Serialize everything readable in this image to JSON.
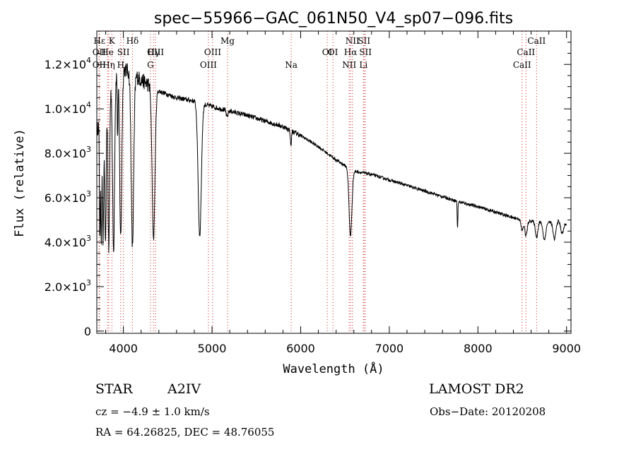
{
  "chart_data": {
    "type": "line",
    "title": "spec−55966−GAC_061N50_V4_sp07−096.fits",
    "xlabel": "Wavelength (Å)",
    "ylabel": "Flux (relative)",
    "xlim": [
      3700,
      9050
    ],
    "ylim": [
      -100,
      13500
    ],
    "x_ticks": [
      4000,
      5000,
      6000,
      7000,
      8000,
      9000
    ],
    "y_ticks": [
      {
        "value": 0,
        "mantissa": "0",
        "exp": ""
      },
      {
        "value": 2000,
        "mantissa": "2.0×10",
        "exp": "3"
      },
      {
        "value": 4000,
        "mantissa": "4.0×10",
        "exp": "3"
      },
      {
        "value": 6000,
        "mantissa": "6.0×10",
        "exp": "3"
      },
      {
        "value": 8000,
        "mantissa": "8.0×10",
        "exp": "3"
      },
      {
        "value": 10000,
        "mantissa": "1.0×10",
        "exp": "4"
      },
      {
        "value": 12000,
        "mantissa": "1.2×10",
        "exp": "4"
      }
    ],
    "grid": false,
    "line_color": "#000000",
    "marker_color": "#cc2222",
    "continuum": [
      [
        3700,
        9000
      ],
      [
        3800,
        10500
      ],
      [
        3900,
        11500
      ],
      [
        4000,
        11800
      ],
      [
        4100,
        11600
      ],
      [
        4200,
        11300
      ],
      [
        4400,
        10800
      ],
      [
        4600,
        10500
      ],
      [
        4800,
        10350
      ],
      [
        5000,
        10100
      ],
      [
        5200,
        9900
      ],
      [
        5400,
        9700
      ],
      [
        5600,
        9450
      ],
      [
        5800,
        9200
      ],
      [
        6000,
        8800
      ],
      [
        6200,
        8300
      ],
      [
        6400,
        7700
      ],
      [
        6600,
        7200
      ],
      [
        6800,
        7050
      ],
      [
        7000,
        6800
      ],
      [
        7200,
        6550
      ],
      [
        7400,
        6300
      ],
      [
        7600,
        6050
      ],
      [
        7800,
        5800
      ],
      [
        8000,
        5600
      ],
      [
        8200,
        5350
      ],
      [
        8400,
        5100
      ],
      [
        8600,
        4950
      ],
      [
        8800,
        4900
      ],
      [
        8950,
        5000
      ],
      [
        9000,
        4800
      ]
    ],
    "absorption": [
      {
        "x": 3734,
        "depth": 5000,
        "width": 5
      },
      {
        "x": 3750,
        "depth": 5500,
        "width": 6
      },
      {
        "x": 3771,
        "depth": 6200,
        "width": 7
      },
      {
        "x": 3798,
        "depth": 6800,
        "width": 8
      },
      {
        "x": 3835,
        "depth": 7200,
        "width": 9
      },
      {
        "x": 3889,
        "depth": 7800,
        "width": 11
      },
      {
        "x": 3934,
        "depth": 3000,
        "width": 4
      },
      {
        "x": 3970,
        "depth": 7500,
        "width": 12
      },
      {
        "x": 4102,
        "depth": 7800,
        "width": 14
      },
      {
        "x": 4340,
        "depth": 6800,
        "width": 16
      },
      {
        "x": 4861,
        "depth": 6000,
        "width": 18
      },
      {
        "x": 5170,
        "depth": 300,
        "width": 10
      },
      {
        "x": 5890,
        "depth": 700,
        "width": 6
      },
      {
        "x": 6562,
        "depth": 3000,
        "width": 16
      },
      {
        "x": 7770,
        "depth": 1200,
        "width": 4
      },
      {
        "x": 8498,
        "depth": 500,
        "width": 12
      },
      {
        "x": 8542,
        "depth": 700,
        "width": 14
      },
      {
        "x": 8662,
        "depth": 700,
        "width": 14
      },
      {
        "x": 8750,
        "depth": 800,
        "width": 16
      },
      {
        "x": 8863,
        "depth": 800,
        "width": 16
      },
      {
        "x": 8950,
        "depth": 600,
        "width": 16
      }
    ],
    "line_markers": [
      {
        "label": "Hε",
        "x": 3730,
        "row": 0
      },
      {
        "label": "K",
        "x": 3870,
        "row": 0
      },
      {
        "label": "Hδ",
        "x": 4102,
        "row": 0
      },
      {
        "label": "Mg",
        "x": 5175,
        "row": 0
      },
      {
        "label": "NII",
        "x": 6584,
        "row": 0
      },
      {
        "label": "SII",
        "x": 6716,
        "row": 0
      },
      {
        "label": "CaII",
        "x": 8662,
        "row": 0
      },
      {
        "label": "OII",
        "x": 3727,
        "row": 1
      },
      {
        "label": "He",
        "x": 3820,
        "row": 1
      },
      {
        "label": "SII",
        "x": 4000,
        "row": 1
      },
      {
        "label": "Hγ",
        "x": 4340,
        "row": 1
      },
      {
        "label": "OIII",
        "x": 5007,
        "row": 1
      },
      {
        "label": "OI",
        "x": 6300,
        "row": 1
      },
      {
        "label": "Hα",
        "x": 6563,
        "row": 1
      },
      {
        "label": "SII",
        "x": 6731,
        "row": 1
      },
      {
        "label": "CaII",
        "x": 8542,
        "row": 1
      },
      {
        "label": "OIII",
        "x": 4363,
        "row": 2
      },
      {
        "label": "OII",
        "x": 3727,
        "row": 3
      },
      {
        "label": "Hη",
        "x": 3835,
        "row": 3
      },
      {
        "label": "H",
        "x": 3970,
        "row": 3
      },
      {
        "label": "G",
        "x": 4305,
        "row": 3
      },
      {
        "label": "OIII",
        "x": 4959,
        "row": 3
      },
      {
        "label": "Na",
        "x": 5893,
        "row": 3
      },
      {
        "label": "OI",
        "x": 6364,
        "row": 2
      },
      {
        "label": "NII",
        "x": 6548,
        "row": 3
      },
      {
        "label": "Li",
        "x": 6708,
        "row": 3
      },
      {
        "label": "CaII",
        "x": 8498,
        "row": 3
      }
    ]
  },
  "info": {
    "object_class": "STAR",
    "subclass": "A2IV",
    "survey": "LAMOST DR2",
    "cz": "cz = −4.9 ± 1.0 km/s",
    "obs_date": "Obs−Date: 20120208",
    "coords": "RA =  64.26825, DEC =  48.76055"
  }
}
